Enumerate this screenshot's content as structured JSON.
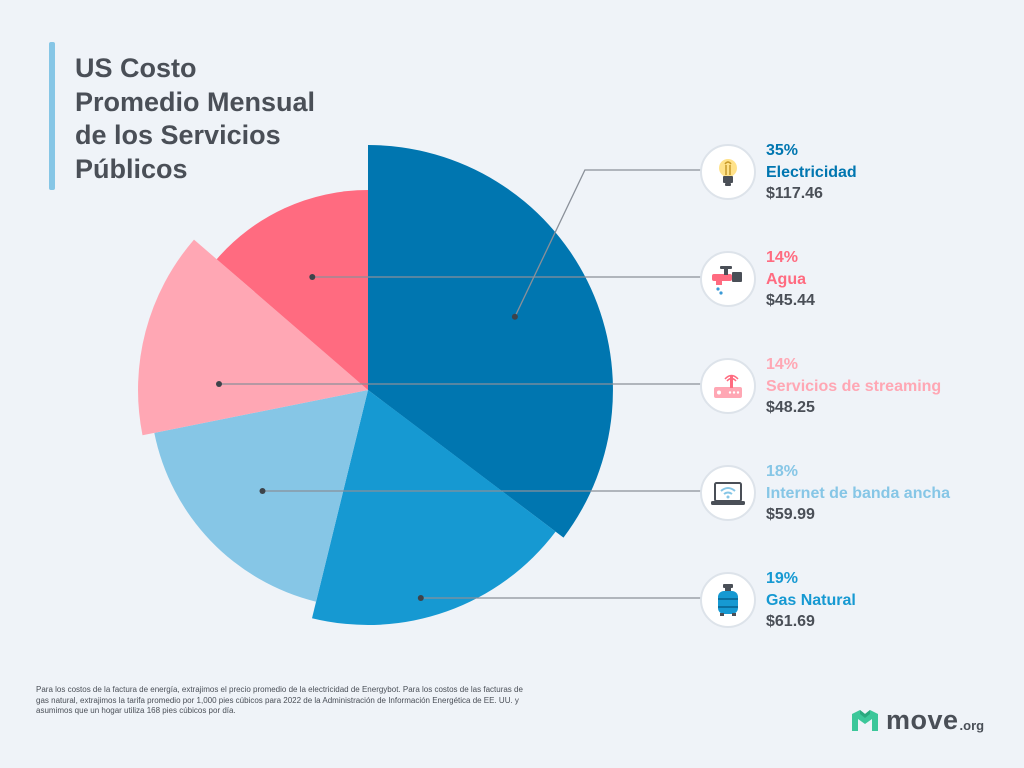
{
  "title": "US Costo\nPromedio Mensual\nde los Servicios\nPúblicos",
  "chart_data": {
    "type": "pie",
    "title": "US Costo Promedio Mensual de los Servicios Públicos",
    "slices": [
      {
        "label": "Electricidad",
        "percent": "35%",
        "value": 117.46,
        "value_label": "$117.46",
        "color": "#0076b0",
        "icon": "light-bulb-icon"
      },
      {
        "label": "Gas Natural",
        "percent": "19%",
        "value": 61.69,
        "value_label": "$61.69",
        "color": "#1699d2",
        "icon": "gas-tank-icon"
      },
      {
        "label": "Internet de banda ancha",
        "percent": "18%",
        "value": 59.99,
        "value_label": "$59.99",
        "color": "#86c6e6",
        "icon": "laptop-wifi-icon"
      },
      {
        "label": "Servicios de streaming",
        "percent": "14%",
        "value": 48.25,
        "value_label": "$48.25",
        "color": "#ffa7b4",
        "icon": "router-icon"
      },
      {
        "label": "Agua",
        "percent": "14%",
        "value": 45.44,
        "value_label": "$45.44",
        "color": "#ff6b80",
        "icon": "water-faucet-icon"
      }
    ]
  },
  "legend_order": [
    "Electricidad",
    "Agua",
    "Servicios de streaming",
    "Internet de banda ancha",
    "Gas Natural"
  ],
  "footnote": "Para los costos de la factura de energía, extrajimos el precio promedio de la electricidad de Energybot. Para los costos de las facturas de gas natural, extrajimos la tarifa promedio por 1,000 pies cúbicos para 2022 de la Administración de Información Energética de EE. UU. y asumimos que un hogar utiliza 168 pies cúbicos por día.",
  "logo": {
    "word": "move",
    "suffix": ".org",
    "color": "#3cc79a"
  }
}
